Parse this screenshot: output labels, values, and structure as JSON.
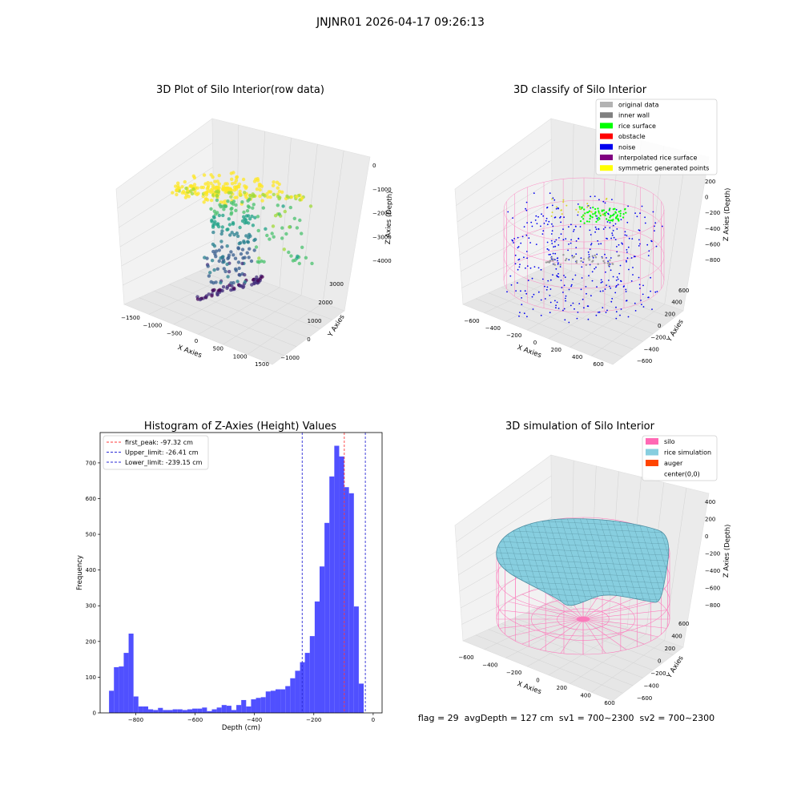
{
  "figure_title": "JNJNR01 2026-04-17 09:26:13",
  "colors": {
    "histogram_bar": "#5050ff",
    "first_peak_line": "#ff3b3b",
    "limit_lines": "#2b2bd6",
    "silo": "#ff69b4",
    "rice_simulation": "#87cedf",
    "auger": "#ff4500",
    "noise": "#0000ee",
    "rice_surface": "#00ff00",
    "original_data": "#b3b3b3",
    "inner_wall": "#808080",
    "obstacle": "#ff0000",
    "interpolated_rice_surface": "#800080",
    "symmetric_generated_points": "#ffff00"
  },
  "panels": {
    "raw": {
      "title": "3D Plot of Silo Interior(row data)",
      "xlabel": "X Axies",
      "ylabel": "Y Axies",
      "zlabel": "Z Axies (Depth)",
      "x_ticks": [
        "−1500",
        "−1000",
        "−500",
        "0",
        "500",
        "1000",
        "1500"
      ],
      "y_ticks": [
        "−1000",
        "0",
        "1000",
        "2000",
        "3000"
      ],
      "z_ticks": [
        "0",
        "−1000",
        "−2000",
        "−3000",
        "−4000"
      ]
    },
    "classify": {
      "title": "3D classify of Silo Interior",
      "xlabel": "X Axies",
      "ylabel": "Y Axies",
      "zlabel": "Z Axies (Depth)",
      "x_ticks": [
        "−600",
        "−400",
        "−200",
        "0",
        "200",
        "400",
        "600"
      ],
      "y_ticks": [
        "−600",
        "−400",
        "−200",
        "0",
        "200",
        "400",
        "600"
      ],
      "z_ticks": [
        "200",
        "0",
        "−200",
        "−400",
        "−600",
        "−800"
      ],
      "legend": [
        {
          "label": "original data",
          "color": "#b3b3b3"
        },
        {
          "label": "inner wall",
          "color": "#808080"
        },
        {
          "label": "rice surface",
          "color": "#00ff00"
        },
        {
          "label": "obstacle",
          "color": "#ff0000"
        },
        {
          "label": "noise",
          "color": "#0000ee"
        },
        {
          "label": "interpolated rice surface",
          "color": "#800080"
        },
        {
          "label": "symmetric generated points",
          "color": "#ffff00"
        }
      ]
    },
    "simulation": {
      "title": "3D simulation of Silo Interior",
      "xlabel": "X Axies",
      "ylabel": "Y Axies",
      "zlabel": "Z Axies (Depth)",
      "x_ticks": [
        "−600",
        "−400",
        "−200",
        "0",
        "200",
        "400",
        "600"
      ],
      "y_ticks": [
        "−600",
        "−400",
        "−200",
        "0",
        "200",
        "400",
        "600"
      ],
      "z_ticks": [
        "400",
        "200",
        "0",
        "−200",
        "−400",
        "−600",
        "−800"
      ],
      "legend": [
        {
          "label": "silo",
          "color": "#ff69b4"
        },
        {
          "label": "rice simulation",
          "color": "#87cedf"
        },
        {
          "label": "auger",
          "color": "#ff4500"
        },
        {
          "label": "center(0,0)",
          "color": "#ffffff"
        }
      ]
    }
  },
  "footer": "flag = 29  avgDepth = 127 cm  sv1 = 700~2300  sv2 = 700~2300",
  "chart_data": {
    "type": "bar",
    "title": "Histogram of Z-Axies (Height) Values",
    "xlabel": "Depth (cm)",
    "ylabel": "Frequency",
    "xlim": [
      -920,
      30
    ],
    "ylim": [
      0,
      785
    ],
    "x_ticks": [
      -800,
      -600,
      -400,
      -200,
      0
    ],
    "y_ticks": [
      0,
      100,
      200,
      300,
      400,
      500,
      600,
      700
    ],
    "bin_width": 16.5,
    "bin_starts": [
      -890,
      -873.5,
      -857,
      -840.5,
      -824,
      -807.5,
      -791,
      -774.5,
      -758,
      -741.5,
      -725,
      -708.5,
      -692,
      -675.5,
      -659,
      -642.5,
      -626,
      -609.5,
      -593,
      -576.5,
      -560,
      -543.5,
      -527,
      -510.5,
      -494,
      -477.5,
      -461,
      -444.5,
      -428,
      -411.5,
      -395,
      -378.5,
      -362,
      -345.5,
      -329,
      -312.5,
      -296,
      -279.5,
      -263,
      -246.5,
      -230,
      -213.5,
      -197,
      -180.5,
      -164,
      -147.5,
      -131,
      -114.5,
      -98,
      -81.5,
      -65,
      -48.5,
      -32,
      -15.5
    ],
    "frequencies": [
      62,
      128,
      130,
      168,
      222,
      46,
      18,
      18,
      10,
      8,
      14,
      8,
      8,
      10,
      10,
      8,
      10,
      12,
      12,
      15,
      5,
      10,
      15,
      22,
      20,
      8,
      22,
      36,
      18,
      38,
      42,
      44,
      60,
      62,
      66,
      66,
      75,
      97,
      118,
      142,
      168,
      215,
      312,
      410,
      532,
      662,
      748,
      718,
      632,
      615,
      298,
      82,
      0,
      0
    ],
    "vlines": [
      {
        "label": "first_peak: -97.32 cm",
        "x": -97.32,
        "color": "#ff3b3b"
      },
      {
        "label": "Upper_limit: -26.41 cm",
        "x": -26.41,
        "color": "#2b2bd6"
      },
      {
        "label": "Lower_limit: -239.15 cm",
        "x": -239.15,
        "color": "#2b2bd6"
      }
    ],
    "legend_position": "upper-left",
    "grid": false
  }
}
